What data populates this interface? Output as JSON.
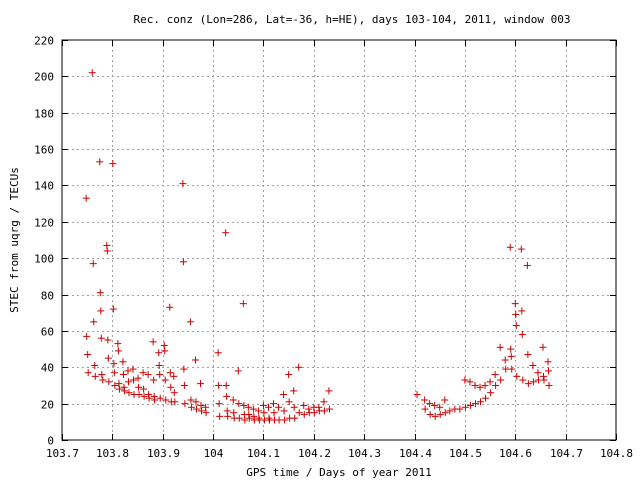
{
  "chart_data": {
    "type": "scatter",
    "title": "Rec. conz (Lon=286, Lat=-36, h=HE), days 103-104, 2011, window 003",
    "xlabel": "GPS time / Days of year 2011",
    "ylabel": "STEC from uqrg / TECUs",
    "xlim": [
      103.7,
      104.8
    ],
    "ylim": [
      0,
      220
    ],
    "xticks": [
      103.7,
      103.8,
      103.9,
      104.0,
      104.1,
      104.2,
      104.3,
      104.4,
      104.5,
      104.6,
      104.7,
      104.8
    ],
    "xtick_labels": [
      "103.7",
      "103.8",
      "103.9",
      "104",
      "104.1",
      "104.2",
      "104.3",
      "104.4",
      "104.5",
      "104.6",
      "104.7",
      "104.8"
    ],
    "yticks": [
      0,
      20,
      40,
      60,
      80,
      100,
      120,
      140,
      160,
      180,
      200,
      220
    ],
    "ytick_labels": [
      "0",
      "20",
      "40",
      "60",
      "80",
      "100",
      "120",
      "140",
      "160",
      "180",
      "200",
      "220"
    ],
    "grid": true,
    "marker": "plus",
    "color": "#cc0000",
    "points": [
      [
        103.748,
        133
      ],
      [
        103.749,
        57
      ],
      [
        103.751,
        47
      ],
      [
        103.752,
        37
      ],
      [
        103.76,
        202
      ],
      [
        103.762,
        97
      ],
      [
        103.763,
        65
      ],
      [
        103.765,
        41
      ],
      [
        103.766,
        35
      ],
      [
        103.775,
        153
      ],
      [
        103.776,
        81
      ],
      [
        103.777,
        71
      ],
      [
        103.778,
        56
      ],
      [
        103.779,
        36
      ],
      [
        103.781,
        33
      ],
      [
        103.789,
        107
      ],
      [
        103.79,
        104
      ],
      [
        103.791,
        55
      ],
      [
        103.792,
        45
      ],
      [
        103.793,
        32
      ],
      [
        103.801,
        152
      ],
      [
        103.802,
        72
      ],
      [
        103.803,
        42
      ],
      [
        103.804,
        37
      ],
      [
        103.805,
        30
      ],
      [
        103.811,
        53
      ],
      [
        103.812,
        49
      ],
      [
        103.813,
        31
      ],
      [
        103.814,
        28
      ],
      [
        103.821,
        43
      ],
      [
        103.822,
        36
      ],
      [
        103.823,
        29
      ],
      [
        103.824,
        27
      ],
      [
        103.831,
        38
      ],
      [
        103.832,
        32
      ],
      [
        103.833,
        26
      ],
      [
        103.841,
        39
      ],
      [
        103.842,
        33
      ],
      [
        103.843,
        25
      ],
      [
        103.851,
        34
      ],
      [
        103.852,
        29
      ],
      [
        103.853,
        25
      ],
      [
        103.861,
        37
      ],
      [
        103.862,
        28
      ],
      [
        103.863,
        24
      ],
      [
        103.871,
        36
      ],
      [
        103.872,
        25
      ],
      [
        103.873,
        23
      ],
      [
        103.881,
        54
      ],
      [
        103.882,
        33
      ],
      [
        103.883,
        24
      ],
      [
        103.884,
        22
      ],
      [
        103.892,
        48
      ],
      [
        103.893,
        41
      ],
      [
        103.894,
        36
      ],
      [
        103.895,
        23
      ],
      [
        103.903,
        52
      ],
      [
        103.904,
        49
      ],
      [
        103.905,
        33
      ],
      [
        103.906,
        22
      ],
      [
        103.914,
        73
      ],
      [
        103.915,
        37
      ],
      [
        103.916,
        29
      ],
      [
        103.917,
        21
      ],
      [
        103.922,
        35
      ],
      [
        103.923,
        26
      ],
      [
        103.924,
        21
      ],
      [
        103.94,
        141
      ],
      [
        103.941,
        98
      ],
      [
        103.942,
        39
      ],
      [
        103.943,
        30
      ],
      [
        103.944,
        20
      ],
      [
        103.955,
        65
      ],
      [
        103.956,
        22
      ],
      [
        103.957,
        18
      ],
      [
        103.965,
        44
      ],
      [
        103.966,
        21
      ],
      [
        103.967,
        17
      ],
      [
        103.975,
        31
      ],
      [
        103.976,
        19
      ],
      [
        103.977,
        16
      ],
      [
        103.985,
        18
      ],
      [
        103.986,
        15
      ],
      [
        104.01,
        48
      ],
      [
        104.011,
        30
      ],
      [
        104.012,
        20
      ],
      [
        104.013,
        13
      ],
      [
        104.025,
        114
      ],
      [
        104.026,
        30
      ],
      [
        104.027,
        24
      ],
      [
        104.028,
        16
      ],
      [
        104.029,
        13
      ],
      [
        104.04,
        22
      ],
      [
        104.041,
        15
      ],
      [
        104.042,
        12
      ],
      [
        104.05,
        38
      ],
      [
        104.051,
        20
      ],
      [
        104.052,
        12
      ],
      [
        104.06,
        75
      ],
      [
        104.061,
        19
      ],
      [
        104.062,
        14
      ],
      [
        104.063,
        11
      ],
      [
        104.07,
        18
      ],
      [
        104.071,
        14
      ],
      [
        104.072,
        12
      ],
      [
        104.08,
        17
      ],
      [
        104.081,
        13
      ],
      [
        104.082,
        11
      ],
      [
        104.09,
        16
      ],
      [
        104.091,
        12
      ],
      [
        104.092,
        11
      ],
      [
        104.1,
        19
      ],
      [
        104.101,
        15
      ],
      [
        104.102,
        11
      ],
      [
        104.11,
        18
      ],
      [
        104.111,
        12
      ],
      [
        104.112,
        11
      ],
      [
        104.12,
        20
      ],
      [
        104.121,
        15
      ],
      [
        104.122,
        11
      ],
      [
        104.13,
        18
      ],
      [
        104.131,
        11
      ],
      [
        104.14,
        25
      ],
      [
        104.141,
        16
      ],
      [
        104.142,
        11
      ],
      [
        104.15,
        36
      ],
      [
        104.151,
        21
      ],
      [
        104.152,
        12
      ],
      [
        104.16,
        27
      ],
      [
        104.161,
        18
      ],
      [
        104.162,
        12
      ],
      [
        104.17,
        40
      ],
      [
        104.171,
        15
      ],
      [
        104.18,
        19
      ],
      [
        104.181,
        14
      ],
      [
        104.19,
        17
      ],
      [
        104.191,
        15
      ],
      [
        104.2,
        18
      ],
      [
        104.201,
        15
      ],
      [
        104.21,
        18
      ],
      [
        104.211,
        16
      ],
      [
        104.22,
        21
      ],
      [
        104.221,
        16
      ],
      [
        104.23,
        27
      ],
      [
        104.231,
        17
      ],
      [
        104.405,
        25
      ],
      [
        104.42,
        22
      ],
      [
        104.421,
        17
      ],
      [
        104.43,
        20
      ],
      [
        104.431,
        14
      ],
      [
        104.44,
        19
      ],
      [
        104.441,
        13
      ],
      [
        104.45,
        18
      ],
      [
        104.451,
        14
      ],
      [
        104.46,
        22
      ],
      [
        104.461,
        15
      ],
      [
        104.47,
        16
      ],
      [
        104.48,
        17
      ],
      [
        104.49,
        17
      ],
      [
        104.5,
        33
      ],
      [
        104.501,
        18
      ],
      [
        104.51,
        32
      ],
      [
        104.511,
        19
      ],
      [
        104.52,
        30
      ],
      [
        104.521,
        20
      ],
      [
        104.53,
        29
      ],
      [
        104.531,
        21
      ],
      [
        104.54,
        30
      ],
      [
        104.541,
        23
      ],
      [
        104.55,
        32
      ],
      [
        104.551,
        26
      ],
      [
        104.56,
        36
      ],
      [
        104.561,
        30
      ],
      [
        104.57,
        51
      ],
      [
        104.571,
        33
      ],
      [
        104.58,
        44
      ],
      [
        104.581,
        39
      ],
      [
        104.59,
        106
      ],
      [
        104.591,
        50
      ],
      [
        104.592,
        46
      ],
      [
        104.593,
        39
      ],
      [
        104.6,
        75
      ],
      [
        104.601,
        69
      ],
      [
        104.602,
        63
      ],
      [
        104.603,
        35
      ],
      [
        104.612,
        105
      ],
      [
        104.613,
        71
      ],
      [
        104.614,
        58
      ],
      [
        104.615,
        33
      ],
      [
        104.624,
        96
      ],
      [
        104.625,
        47
      ],
      [
        104.626,
        31
      ],
      [
        104.635,
        41
      ],
      [
        104.636,
        32
      ],
      [
        104.645,
        37
      ],
      [
        104.646,
        33
      ],
      [
        104.655,
        51
      ],
      [
        104.656,
        35
      ],
      [
        104.657,
        33
      ],
      [
        104.665,
        43
      ],
      [
        104.666,
        38
      ],
      [
        104.667,
        30
      ]
    ]
  }
}
